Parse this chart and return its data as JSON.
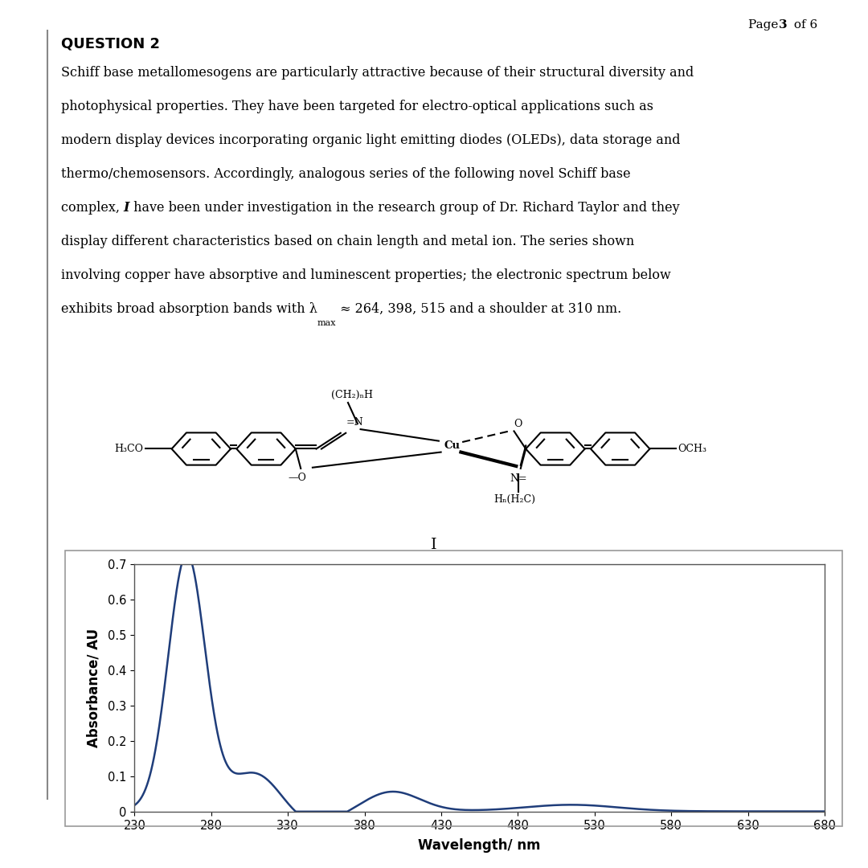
{
  "page_header_normal": "Page ",
  "page_bold": "3",
  "page_suffix": " of 6",
  "question_label": "QUESTION 2",
  "compound_label": "I",
  "xlabel": "Wavelength/ nm",
  "ylabel": "Absorbance/ AU",
  "xlim": [
    230,
    680
  ],
  "ylim": [
    0,
    0.7
  ],
  "xticks": [
    230,
    280,
    330,
    380,
    430,
    480,
    530,
    580,
    630,
    680
  ],
  "yticks": [
    0,
    0.1,
    0.2,
    0.3,
    0.4,
    0.5,
    0.6,
    0.7
  ],
  "line_color": "#1f3d7a",
  "background_color": "#ffffff",
  "plot_bg": "#ffffff",
  "border_color": "#aaaaaa",
  "text_lines": [
    "Schiff base metallomesogens are particularly attractive because of their structural diversity and",
    "photophysical properties. They have been targeted for electro-optical applications such as",
    "modern display devices incorporating organic light emitting diodes (OLEDs), data storage and",
    "thermo/chemosensors. Accordingly, analogous series of the following novel Schiff base",
    "complex, |I| have been under investigation in the research group of Dr. Richard Taylor and they",
    "display different characteristics based on chain length and metal ion. The series shown",
    "involving copper have absorptive and luminescent properties; the electronic spectrum below",
    "exhibits broad absorption bands with |lmax| ≈ 264, 398, 515 and a shoulder at 310 nm."
  ]
}
